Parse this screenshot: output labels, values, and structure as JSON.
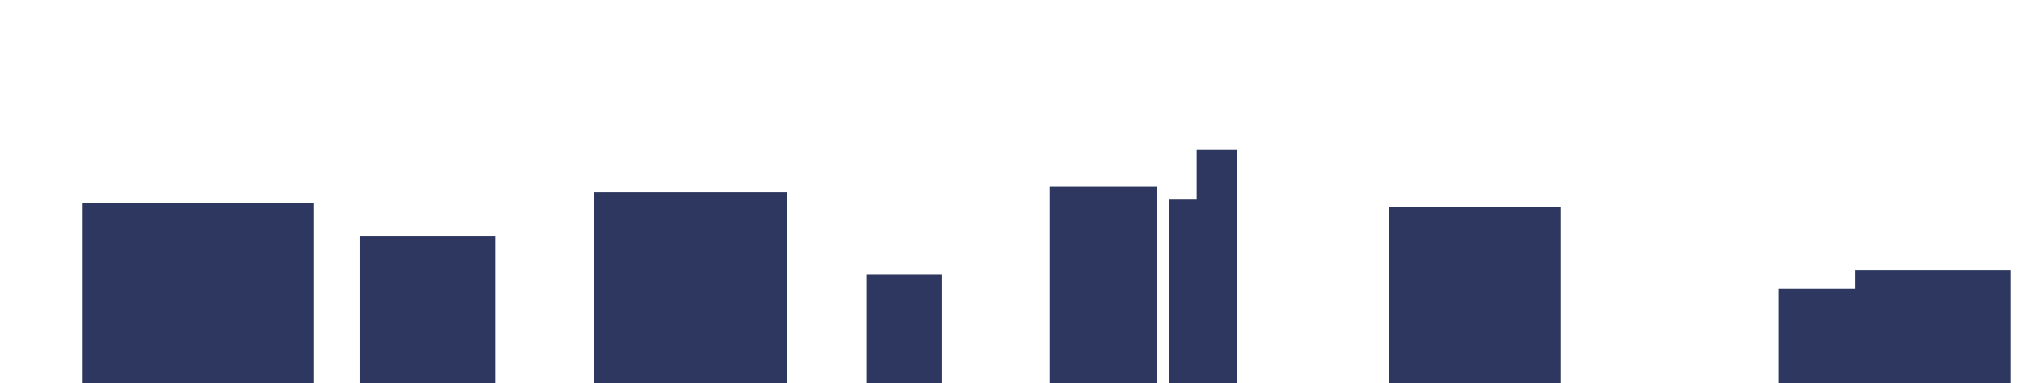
{
  "colors": {
    "background": "#ffffff",
    "block_fill": "#2e375f"
  },
  "shapes": [
    {
      "id": "block-1",
      "kind": "rectangle"
    },
    {
      "id": "block-2",
      "kind": "rectangle"
    },
    {
      "id": "block-3",
      "kind": "rectangle"
    },
    {
      "id": "block-4",
      "kind": "rectangle"
    },
    {
      "id": "block-5",
      "kind": "rectangle"
    },
    {
      "id": "block-6",
      "kind": "stepped-rectangle"
    },
    {
      "id": "block-7",
      "kind": "rectangle"
    },
    {
      "id": "block-8",
      "kind": "stepped-rectangle"
    }
  ]
}
